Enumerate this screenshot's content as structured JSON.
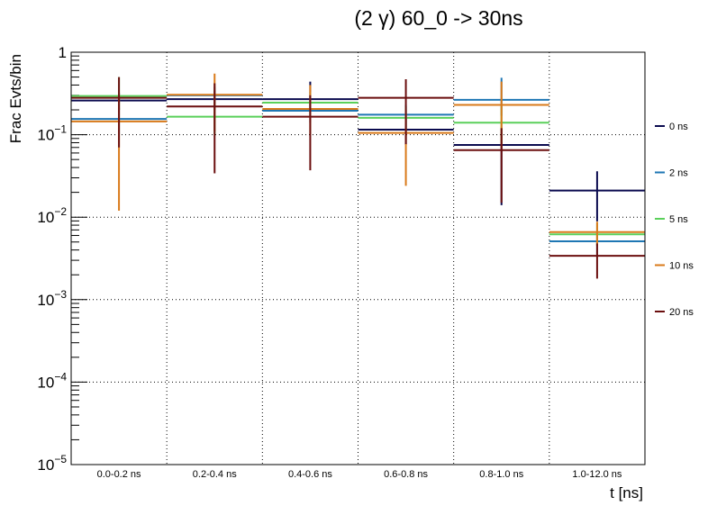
{
  "chart_data": {
    "type": "step",
    "title": "(2 γ) 60_0 -> 30ns",
    "xlabel": "t [ns]",
    "ylabel": "Frac Evts/bin",
    "yscale": "log",
    "ylim": [
      1e-05,
      1
    ],
    "grid": true,
    "legend_position": "right",
    "categories": [
      "0.0-0.2 ns",
      "0.2-0.4 ns",
      "0.4-0.6 ns",
      "0.6-0.8 ns",
      "0.8-1.0 ns",
      "1.0-12.0 ns"
    ],
    "y_ticks": [
      {
        "base": "1",
        "exp": ""
      },
      {
        "base": "10",
        "exp": "−1"
      },
      {
        "base": "10",
        "exp": "−2"
      },
      {
        "base": "10",
        "exp": "−3"
      },
      {
        "base": "10",
        "exp": "−4"
      },
      {
        "base": "10",
        "exp": "−5"
      }
    ],
    "series": [
      {
        "name": "0 ns",
        "color": "#0b0b4f",
        "values": [
          0.26,
          0.27,
          0.27,
          0.115,
          0.075,
          0.021
        ],
        "err_lo": [
          0.2,
          0.2,
          0.2,
          0.075,
          0.014,
          0.0089
        ],
        "err_hi": [
          0.32,
          0.34,
          0.44,
          0.16,
          0.12,
          0.036
        ]
      },
      {
        "name": "2 ns",
        "color": "#1f77b4",
        "values": [
          0.155,
          0.3,
          0.195,
          0.175,
          0.265,
          0.0051
        ],
        "err_lo": [
          0.1,
          0.22,
          0.14,
          0.12,
          0.17,
          0.0035
        ],
        "err_hi": [
          0.21,
          0.38,
          0.26,
          0.23,
          0.49,
          0.0068
        ]
      },
      {
        "name": "5 ns",
        "color": "#5ad05a",
        "values": [
          0.295,
          0.165,
          0.245,
          0.16,
          0.14,
          0.0062
        ],
        "err_lo": [
          0.2,
          0.1,
          0.17,
          0.1,
          0.08,
          0.0045
        ],
        "err_hi": [
          0.5,
          0.25,
          0.33,
          0.22,
          0.22,
          0.0085
        ]
      },
      {
        "name": "10 ns",
        "color": "#d97a1a",
        "values": [
          0.145,
          0.305,
          0.205,
          0.105,
          0.23,
          0.0066
        ],
        "err_lo": [
          0.012,
          0.11,
          0.1,
          0.024,
          0.07,
          0.0045
        ],
        "err_hi": [
          0.3,
          0.55,
          0.4,
          0.2,
          0.44,
          0.0088
        ]
      },
      {
        "name": "20 ns",
        "color": "#6b0f0f",
        "values": [
          0.28,
          0.22,
          0.165,
          0.28,
          0.065,
          0.0034
        ],
        "err_lo": [
          0.07,
          0.034,
          0.037,
          0.077,
          0.015,
          0.0018
        ],
        "err_hi": [
          0.5,
          0.42,
          0.3,
          0.47,
          0.12,
          0.0048
        ]
      }
    ]
  }
}
